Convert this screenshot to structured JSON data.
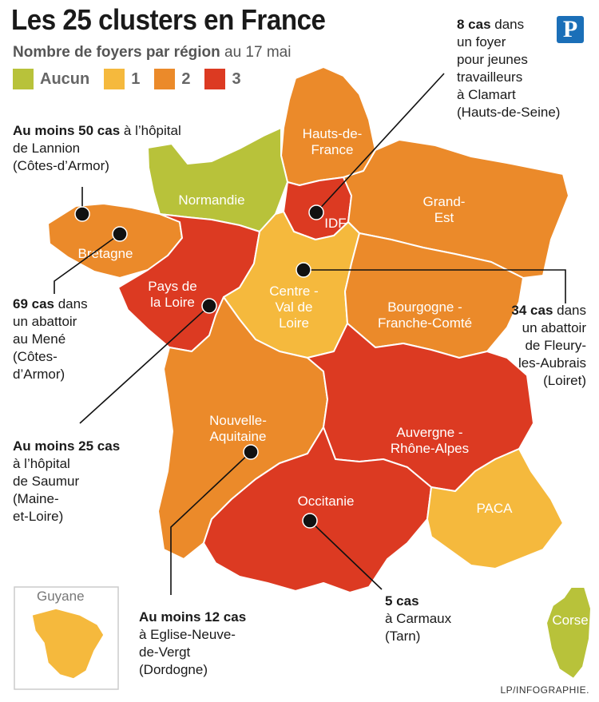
{
  "title": "Les 25 clusters en France",
  "subtitle_bold": "Nombre de foyers par région",
  "subtitle_rest": " au 17 mai",
  "logo_letter": "P",
  "legend": [
    {
      "label": "Aucun",
      "color": "#b8c23a"
    },
    {
      "label": "1",
      "color": "#f5b93d"
    },
    {
      "label": "2",
      "color": "#eb8a2a"
    },
    {
      "label": "3",
      "color": "#dc3a22"
    }
  ],
  "regions": [
    {
      "id": "hauts-de-france",
      "label_lines": [
        "Hauts-de-",
        "France"
      ],
      "foyers": 2,
      "color": "#eb8a2a"
    },
    {
      "id": "normandie",
      "label_lines": [
        "Normandie"
      ],
      "foyers": 0,
      "color": "#b8c23a"
    },
    {
      "id": "idf",
      "label_lines": [
        "IDF"
      ],
      "foyers": 3,
      "color": "#dc3a22"
    },
    {
      "id": "grand-est",
      "label_lines": [
        "Grand-",
        "Est"
      ],
      "foyers": 2,
      "color": "#eb8a2a"
    },
    {
      "id": "bretagne",
      "label_lines": [
        "Bretagne"
      ],
      "foyers": 2,
      "color": "#eb8a2a"
    },
    {
      "id": "pays-de-la-loire",
      "label_lines": [
        "Pays de",
        "la Loire"
      ],
      "foyers": 3,
      "color": "#dc3a22"
    },
    {
      "id": "centre-val-de-loire",
      "label_lines": [
        "Centre -",
        "Val de",
        "Loire"
      ],
      "foyers": 1,
      "color": "#f5b93d"
    },
    {
      "id": "bourgogne-franche-comte",
      "label_lines": [
        "Bourgogne -",
        "Franche-Comté"
      ],
      "foyers": 2,
      "color": "#eb8a2a"
    },
    {
      "id": "nouvelle-aquitaine",
      "label_lines": [
        "Nouvelle-",
        "Aquitaine"
      ],
      "foyers": 2,
      "color": "#eb8a2a"
    },
    {
      "id": "auvergne-rhone-alpes",
      "label_lines": [
        "Auvergne -",
        "Rhône-Alpes"
      ],
      "foyers": 3,
      "color": "#dc3a22"
    },
    {
      "id": "occitanie",
      "label_lines": [
        "Occitanie"
      ],
      "foyers": 3,
      "color": "#dc3a22"
    },
    {
      "id": "paca",
      "label_lines": [
        "PACA"
      ],
      "foyers": 1,
      "color": "#f5b93d"
    },
    {
      "id": "corse",
      "label_lines": [
        "Corse"
      ],
      "foyers": 0,
      "color": "#b8c23a"
    },
    {
      "id": "guyane",
      "label_lines": [
        "Guyane"
      ],
      "foyers": 1,
      "color": "#f5b93d"
    }
  ],
  "annotations": {
    "lannion": {
      "strong": "Au moins 50 cas",
      "rest": [
        " à l’hôpital",
        "de Lannion",
        "(Côtes-d’Armor)"
      ]
    },
    "clamart": {
      "strong": "8 cas",
      "rest": [
        " dans",
        "un foyer",
        "pour jeunes",
        "travailleurs",
        "à Clamart",
        "(Hauts-de-Seine)"
      ]
    },
    "mene": {
      "strong": "69 cas",
      "rest": [
        " dans",
        "un abattoir",
        "au Mené",
        "(Côtes-",
        "d’Armor)"
      ]
    },
    "fleury": {
      "strong": "34 cas",
      "rest": [
        " dans",
        "un abattoir",
        "de Fleury-",
        "les-Aubrais",
        "(Loiret)"
      ]
    },
    "saumur": {
      "strong": "Au moins 25 cas",
      "rest": [
        "à l’hôpital",
        "de Saumur",
        "(Maine-",
        "et-Loire)"
      ]
    },
    "eglise": {
      "strong": "Au moins 12 cas",
      "rest": [
        "à Eglise-Neuve-",
        "de-Vergt",
        "(Dordogne)"
      ]
    },
    "carmaux": {
      "strong": "5 cas",
      "rest": [
        "à Carmaux",
        "(Tarn)"
      ]
    }
  },
  "inset_label": "Guyane",
  "credit": "LP/INFOGRAPHIE."
}
